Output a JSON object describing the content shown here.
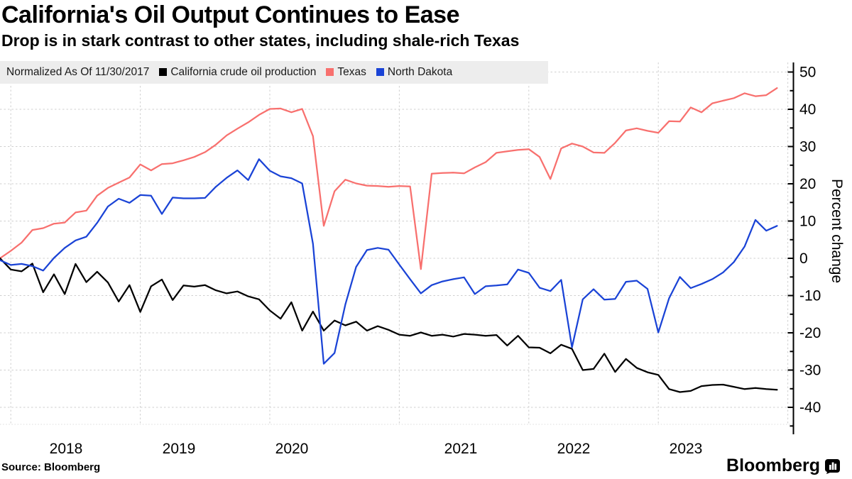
{
  "header": {
    "title": "California's Oil Output Continues to Ease",
    "subtitle": "Drop is in stark contrast to other states, including shale-rich Texas"
  },
  "legend": {
    "note": "Normalized As Of 11/30/2017",
    "items": [
      {
        "label": "California crude oil production",
        "color": "#000000"
      },
      {
        "label": "Texas",
        "color": "#F8706E"
      },
      {
        "label": "North Dakota",
        "color": "#1A43D6"
      }
    ]
  },
  "chart_data": {
    "type": "line",
    "title": "California's Oil Output Continues to Ease",
    "xlabel": "",
    "ylabel": "Percent change",
    "x_start": "Nov 2017",
    "x_end": "Nov 2023",
    "x_frequency": "monthly",
    "x_tick_labels": [
      "2018",
      "2019",
      "2020",
      "2021",
      "2022",
      "2023"
    ],
    "ylim": [
      -45,
      52
    ],
    "yticks": [
      50,
      40,
      30,
      20,
      10,
      0,
      -10,
      -20,
      -30,
      -40
    ],
    "grid": true,
    "legend_position": "top",
    "series": [
      {
        "name": "California crude oil production",
        "color": "#000000",
        "values": [
          0,
          -3,
          -3.5,
          -1.4,
          -9.1,
          -4.3,
          -9.6,
          -1.5,
          -6.4,
          -3.6,
          -6.5,
          -11.6,
          -7.2,
          -14.4,
          -7.5,
          -5.7,
          -11.2,
          -7.3,
          -7.6,
          -7.2,
          -8.6,
          -9.4,
          -8.9,
          -10.2,
          -11,
          -14,
          -16.2,
          -11.8,
          -19.4,
          -14.3,
          -19.4,
          -16.7,
          -18,
          -17,
          -19.4,
          -18.2,
          -19.2,
          -20.5,
          -20.8,
          -19.9,
          -20.8,
          -20.5,
          -21,
          -20.3,
          -20.5,
          -20.8,
          -20.6,
          -23.4,
          -20.8,
          -23.9,
          -24,
          -25.5,
          -23.2,
          -24.3,
          -30,
          -29.7,
          -25.6,
          -30.5,
          -27,
          -29.4,
          -30.6,
          -31.3,
          -35.1,
          -35.9,
          -35.6,
          -34.3,
          -34,
          -33.9,
          -34.5,
          -35.1,
          -34.8,
          -35.1,
          -35.3
        ]
      },
      {
        "name": "Texas",
        "color": "#F8706E",
        "values": [
          0,
          2,
          4.2,
          7.6,
          8.1,
          9.3,
          9.6,
          12.3,
          12.8,
          16.8,
          18.9,
          20.3,
          21.7,
          25.2,
          23.6,
          25.3,
          25.5,
          26.3,
          27.2,
          28.5,
          30.5,
          33,
          34.8,
          36.5,
          38.5,
          40.1,
          40.2,
          39.2,
          40.1,
          32.8,
          8.7,
          18,
          21.1,
          20.1,
          19.5,
          19.4,
          19.2,
          19.4,
          19.3,
          -2.9,
          22.7,
          22.9,
          23,
          22.8,
          24.4,
          25.8,
          28.3,
          28.7,
          29.1,
          29.3,
          27.2,
          21.3,
          29.5,
          30.8,
          30,
          28.4,
          28.3,
          31,
          34.3,
          34.9,
          34.2,
          33.7,
          36.8,
          36.7,
          40.5,
          39.2,
          41.6,
          42.3,
          43,
          44.3,
          43.5,
          43.8,
          45.7
        ]
      },
      {
        "name": "North Dakota",
        "color": "#1A43D6",
        "values": [
          -0.5,
          -1.8,
          -1.5,
          -2.1,
          -3.3,
          0.1,
          2.8,
          4.8,
          5.8,
          9.5,
          13.9,
          16,
          14.9,
          17,
          16.8,
          11.9,
          16.3,
          16.1,
          16.1,
          16.2,
          19.2,
          21.6,
          23.6,
          21,
          26.6,
          23.5,
          22,
          21.5,
          20.1,
          3.9,
          -28.3,
          -25.4,
          -12.4,
          -2.3,
          2.2,
          2.8,
          2.3,
          -1.7,
          -5.6,
          -9.4,
          -7.2,
          -6.2,
          -5.6,
          -5.1,
          -9.6,
          -7.5,
          -7.3,
          -7,
          -3,
          -3.9,
          -7.9,
          -8.8,
          -5.8,
          -23.9,
          -11,
          -8.3,
          -11.1,
          -10.9,
          -6.3,
          -6,
          -8.2,
          -19.9,
          -10.7,
          -5,
          -8,
          -6.9,
          -5.6,
          -3.8,
          -1,
          3.2,
          10.3,
          7.4,
          8.7
        ]
      }
    ]
  },
  "footer": {
    "source": "Source: Bloomberg",
    "logo": "Bloomberg"
  }
}
